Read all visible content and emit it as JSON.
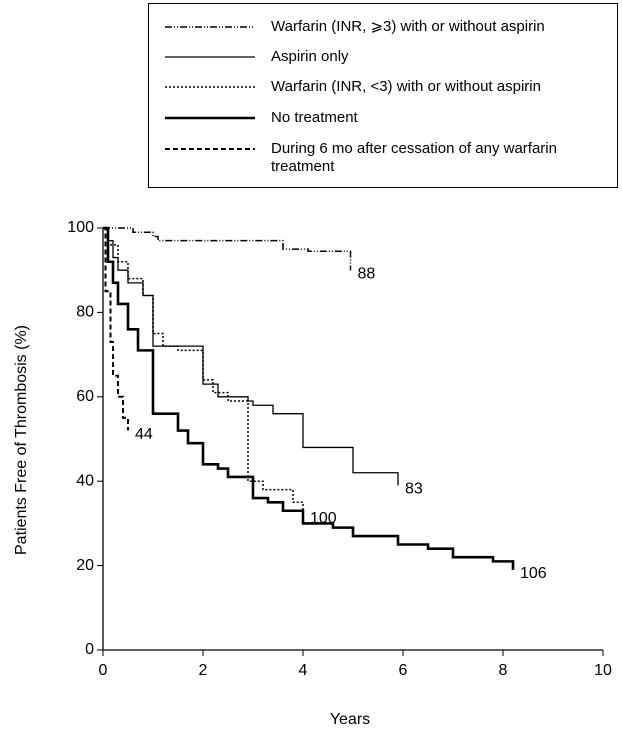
{
  "chart_data": {
    "type": "step",
    "x_label": "Years",
    "y_label": "Patients Free of Thrombosis (%)",
    "xlim": [
      0,
      10
    ],
    "xticks": [
      0,
      2,
      4,
      6,
      8,
      10
    ],
    "ylim": [
      0,
      100
    ],
    "yticks": [
      0,
      20,
      40,
      60,
      80,
      100
    ],
    "grid": false,
    "series": [
      {
        "name": "Warfarin (INR, ⩾3) with or without aspirin",
        "color": "#000000",
        "style": "dashdot",
        "end_label": "88",
        "x": [
          0,
          0.6,
          1.0,
          1.1,
          3.6,
          4.1,
          4.95
        ],
        "values": [
          100,
          99,
          98,
          97,
          95,
          94.5,
          90
        ]
      },
      {
        "name": "Aspirin only",
        "color": "#000000",
        "style": "solid",
        "end_label": "83",
        "x": [
          0,
          0.1,
          0.2,
          0.3,
          0.5,
          0.8,
          1.0,
          2.0,
          2.3,
          2.9,
          3.0,
          3.4,
          4.0,
          5.0,
          5.9
        ],
        "values": [
          100,
          97,
          93,
          90,
          87,
          84,
          72,
          63,
          60,
          59,
          58,
          56,
          48,
          42,
          39
        ]
      },
      {
        "name": "Warfarin (INR, <3) with or without aspirin",
        "color": "#000000",
        "style": "dotted",
        "end_label": "100",
        "x": [
          0,
          0.1,
          0.3,
          0.5,
          0.8,
          1.0,
          1.2,
          1.5,
          2.0,
          2.2,
          2.5,
          2.9,
          3.2,
          3.8,
          4.0
        ],
        "values": [
          100,
          96,
          92,
          88,
          84,
          75,
          72,
          71,
          64,
          61,
          59,
          40,
          38,
          35,
          32
        ]
      },
      {
        "name": "No treatment",
        "color": "#000000",
        "style": "thick",
        "end_label": "106",
        "x": [
          0,
          0.1,
          0.2,
          0.3,
          0.5,
          0.7,
          1.0,
          1.5,
          1.7,
          2.0,
          2.3,
          2.5,
          3.0,
          3.3,
          3.6,
          4.0,
          4.6,
          5.0,
          5.9,
          6.5,
          7.0,
          7.8,
          8.2
        ],
        "values": [
          100,
          92,
          87,
          82,
          76,
          71,
          56,
          52,
          49,
          44,
          43,
          41,
          36,
          35,
          33,
          30,
          29,
          27,
          25,
          24,
          22,
          21,
          19
        ]
      },
      {
        "name": "During 6 mo after cessation of any warfarin treatment",
        "color": "#000000",
        "style": "dashed",
        "end_label": "44",
        "x": [
          0,
          0.05,
          0.15,
          0.2,
          0.3,
          0.4,
          0.5
        ],
        "values": [
          100,
          85,
          73,
          65,
          60,
          55,
          52
        ]
      }
    ]
  }
}
